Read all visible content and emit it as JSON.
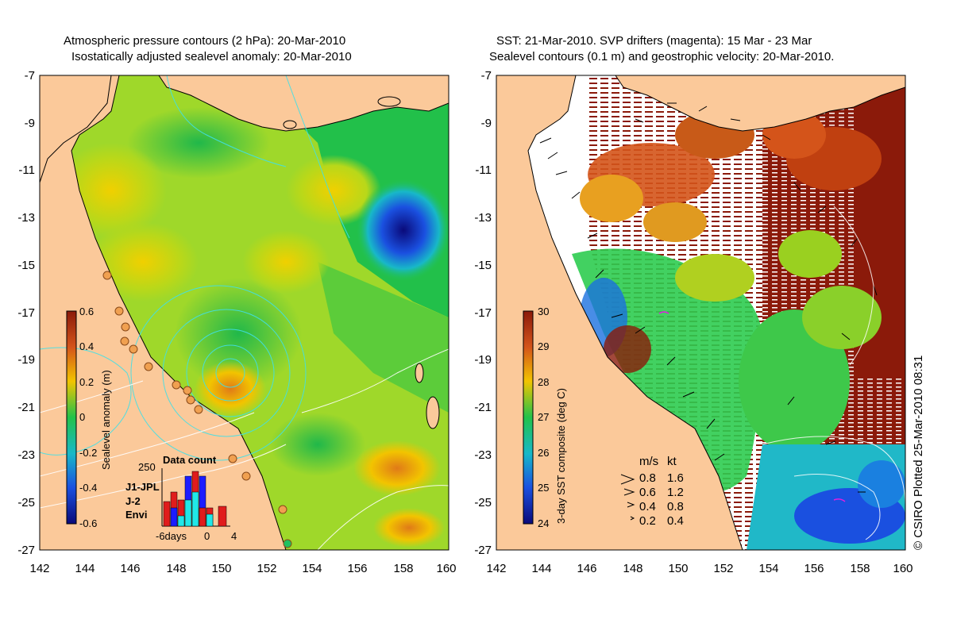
{
  "left_panel": {
    "title_line1": "Atmospheric pressure contours (2 hPa): 20-Mar-2010",
    "title_line2": "Isostatically adjusted sealevel anomaly: 20-Mar-2010",
    "colorbar": {
      "label": "Sealevel anomaly (m)",
      "ticks": [
        "0.6",
        "0.4",
        "0.2",
        "0",
        "-0.2",
        "-0.4",
        "-0.6"
      ]
    },
    "data_count": {
      "title": "Data count",
      "ymax_label": "250",
      "legend": [
        {
          "label": "J1-JPL",
          "color": "#1c1cff"
        },
        {
          "label": "J-2",
          "color": "#e01c1c"
        },
        {
          "label": "Envi",
          "color": "#20e8e8"
        }
      ],
      "x_labels": [
        "-6days",
        "0",
        "4"
      ]
    }
  },
  "right_panel": {
    "title_line1": "SST: 21-Mar-2010. SVP drifters (magenta): 15 Mar - 23 Mar",
    "title_line2": "Sealevel contours (0.1 m) and geostrophic velocity: 20-Mar-2010.",
    "colorbar": {
      "label": "3-day SST composite (deg C)",
      "ticks": [
        "30",
        "29",
        "28",
        "27",
        "26",
        "25",
        "24"
      ]
    },
    "velocity_legend": {
      "header_ms": "m/s",
      "header_kt": "kt",
      "rows": [
        {
          "ms": "0.8",
          "kt": "1.6"
        },
        {
          "ms": "0.6",
          "kt": "1.2"
        },
        {
          "ms": "0.4",
          "kt": "0.8"
        },
        {
          "ms": "0.2",
          "kt": "0.4"
        }
      ]
    }
  },
  "axes": {
    "y_ticks": [
      "-7",
      "-9",
      "-11",
      "-13",
      "-15",
      "-17",
      "-19",
      "-21",
      "-23",
      "-25",
      "-27"
    ],
    "x_ticks": [
      "142",
      "144",
      "146",
      "148",
      "150",
      "152",
      "154",
      "156",
      "158",
      "160"
    ]
  },
  "credit": "© CSIRO Plotted 25-Mar-2010 08:31",
  "colors": {
    "land": "#fbc99a",
    "sla_positive": "#f2c400",
    "sla_zero": "#22c24a",
    "sla_negative": "#0a0a7a",
    "sst_warm": "#8b1a0a",
    "sst_cool": "#0a0a7a"
  }
}
